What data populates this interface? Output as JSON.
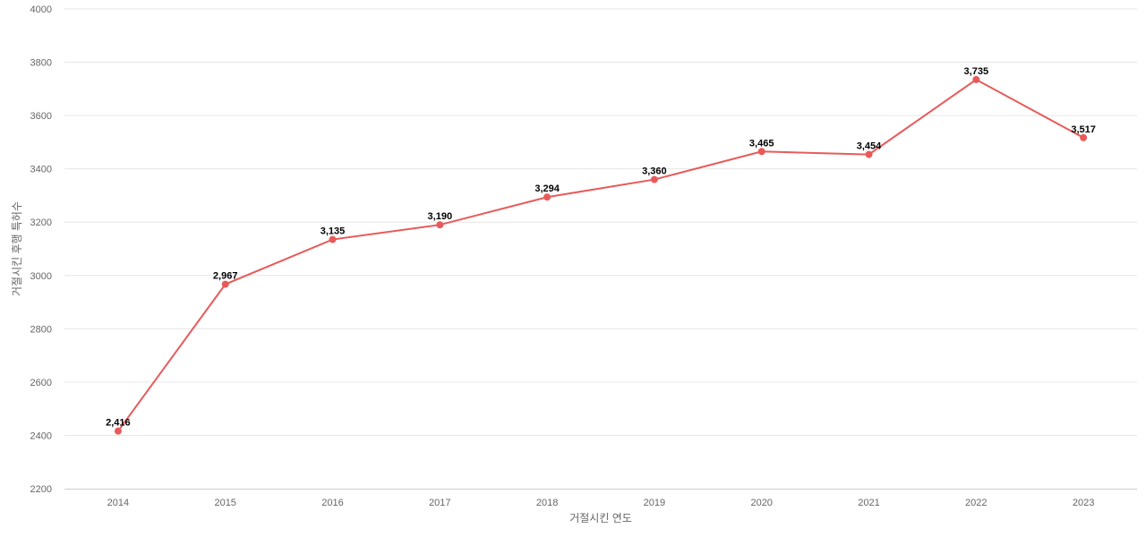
{
  "chart_data": {
    "type": "line",
    "title": "",
    "xlabel": "거절시킨 연도",
    "ylabel": "거절시킨 후행 특허수",
    "categories": [
      "2014",
      "2015",
      "2016",
      "2017",
      "2018",
      "2019",
      "2020",
      "2021",
      "2022",
      "2023"
    ],
    "series": [
      {
        "values": [
          2416,
          2967,
          3135,
          3190,
          3294,
          3360,
          3465,
          3454,
          3735,
          3517
        ],
        "labels": [
          "2,416",
          "2,967",
          "3,135",
          "3,190",
          "3,294",
          "3,360",
          "3,465",
          "3,454",
          "3,735",
          "3,517"
        ],
        "color": "#e85a5a"
      }
    ],
    "ylim": [
      2200,
      4000
    ],
    "yticks": [
      2200,
      2400,
      2600,
      2800,
      3000,
      3200,
      3400,
      3600,
      3800,
      4000
    ],
    "grid": true,
    "legend": "none"
  }
}
